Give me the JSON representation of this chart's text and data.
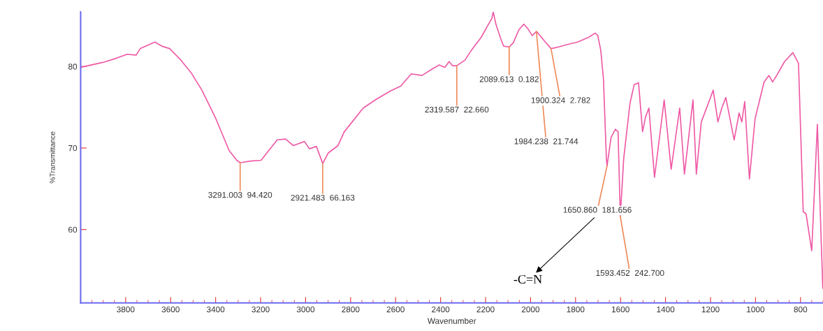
{
  "chart_data": {
    "type": "line",
    "xlabel": "Wavenumber",
    "ylabel": "%Transmittance",
    "xlim": [
      4000,
      700
    ],
    "ylim": [
      51,
      86.7
    ],
    "xticks": [
      3800,
      3600,
      3400,
      3200,
      3000,
      2800,
      2600,
      2400,
      2200,
      2000,
      1800,
      1600,
      1400,
      1200,
      1000,
      800
    ],
    "yticks": [
      60,
      70,
      80
    ],
    "grid": false,
    "marker": "none",
    "line_style": "solid",
    "series": [
      {
        "color": "#ee5aa6",
        "x": [
          4000,
          3902,
          3843,
          3794,
          3753,
          3735,
          3670,
          3639,
          3604,
          3555,
          3508,
          3461,
          3399,
          3340,
          3306,
          3291,
          3244,
          3198,
          3126,
          3089,
          3055,
          3005,
          2983,
          2952,
          2924,
          2899,
          2856,
          2828,
          2744,
          2685,
          2623,
          2577,
          2530,
          2483,
          2437,
          2406,
          2381,
          2362,
          2347,
          2328,
          2291,
          2263,
          2219,
          2191,
          2172,
          2166,
          2154,
          2135,
          2120,
          2095,
          2077,
          2052,
          2030,
          2011,
          1993,
          1974,
          1958,
          1934,
          1909,
          1875,
          1837,
          1791,
          1741,
          1713,
          1701,
          1688,
          1676,
          1663,
          1660,
          1642,
          1623,
          1611,
          1601,
          1586,
          1558,
          1539,
          1520,
          1502,
          1489,
          1474,
          1449,
          1406,
          1375,
          1337,
          1316,
          1278,
          1263,
          1241,
          1188,
          1167,
          1150,
          1132,
          1095,
          1073,
          1061,
          1048,
          1027,
          1002,
          962,
          940,
          924,
          906,
          871,
          834,
          809,
          788,
          775,
          750,
          725,
          701
        ],
        "values": [
          79.9,
          80.5,
          81.0,
          81.5,
          81.4,
          82.2,
          83.0,
          82.5,
          82.2,
          80.8,
          79.2,
          77.1,
          73.6,
          69.7,
          68.5,
          68.2,
          68.4,
          68.5,
          71.0,
          71.1,
          70.3,
          70.8,
          69.9,
          70.2,
          68.1,
          69.4,
          70.3,
          72.0,
          74.9,
          76.0,
          77.0,
          77.6,
          79.1,
          78.9,
          79.7,
          80.2,
          79.9,
          80.6,
          80.1,
          80.1,
          80.8,
          82.0,
          83.6,
          85.0,
          85.9,
          86.7,
          85.2,
          83.6,
          82.5,
          82.4,
          82.9,
          84.5,
          85.2,
          84.6,
          83.8,
          84.3,
          83.8,
          83.0,
          82.2,
          82.4,
          82.7,
          83.0,
          83.6,
          84.1,
          83.8,
          82.0,
          78.5,
          68.7,
          67.8,
          71.3,
          72.3,
          72.0,
          61.6,
          68.7,
          75.5,
          77.8,
          78.0,
          72.0,
          73.8,
          74.9,
          66.4,
          75.9,
          67.4,
          74.9,
          66.8,
          75.9,
          66.8,
          73.2,
          77.1,
          73.2,
          74.9,
          76.2,
          71.0,
          74.3,
          73.2,
          75.7,
          66.2,
          73.6,
          78.1,
          78.9,
          78.1,
          78.9,
          80.6,
          81.7,
          80.4,
          62.2,
          61.9,
          57.4,
          72.9,
          52.8
        ]
      }
    ],
    "annotations": [
      {
        "text": "3291.003  94.420",
        "x": 3291,
        "y": 68.2
      },
      {
        "text": "2921.483  66.163",
        "x": 2924,
        "y": 68.1
      },
      {
        "text": "2319.587  22.660",
        "x": 2328,
        "y": 80.1
      },
      {
        "text": "2089.613  0.182",
        "x": 2095,
        "y": 82.4
      },
      {
        "text": "1984.238  21.744",
        "x": 1974,
        "y": 84.3
      },
      {
        "text": "1900.324  2.782",
        "x": 1909,
        "y": 82.2
      },
      {
        "text": "1650.860  181.656",
        "x": 1660,
        "y": 67.8
      },
      {
        "text": "1593.452  242.700",
        "x": 1601,
        "y": 61.6
      },
      "-C=N"
    ]
  }
}
